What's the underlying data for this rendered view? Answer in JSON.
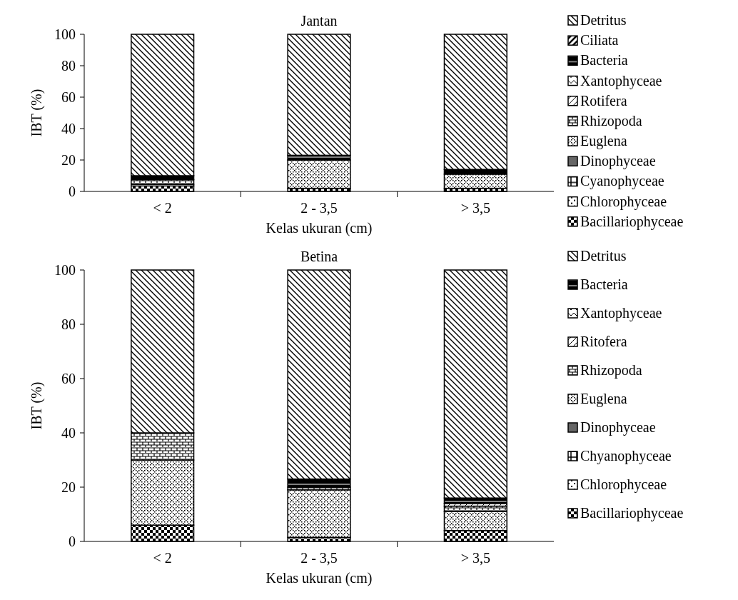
{
  "chart_data": [
    {
      "type": "bar",
      "stacked": true,
      "title": "Jantan",
      "xlabel": "Kelas ukuran (cm)",
      "ylabel": "IBT (%)",
      "categories": [
        "< 2",
        "2 - 3,5",
        "> 3,5"
      ],
      "ylim": [
        0,
        100
      ],
      "yticks": [
        0,
        20,
        40,
        60,
        80,
        100
      ],
      "legend": "right",
      "series": [
        {
          "name": "Bacillariophyceae",
          "color": "#000000",
          "values": [
            3.5,
            2,
            2
          ]
        },
        {
          "name": "Chlorophyceae",
          "color": "#000000",
          "values": [
            1,
            0,
            0
          ]
        },
        {
          "name": "Cyanophyceae",
          "color": "#000000",
          "values": [
            0,
            0,
            0
          ]
        },
        {
          "name": "Dinophyceae",
          "color": "#000000",
          "values": [
            0,
            0,
            0
          ]
        },
        {
          "name": "Euglena",
          "color": "#000000",
          "values": [
            0,
            18,
            9
          ]
        },
        {
          "name": "Rhizopoda",
          "color": "#000000",
          "values": [
            3,
            0,
            0
          ]
        },
        {
          "name": "Rotifera",
          "color": "#000000",
          "values": [
            0,
            0,
            0
          ]
        },
        {
          "name": "Xantophyceae",
          "color": "#000000",
          "values": [
            0,
            0,
            0
          ]
        },
        {
          "name": "Bacteria",
          "color": "#000000",
          "values": [
            2.5,
            3,
            3
          ]
        },
        {
          "name": "Ciliata",
          "color": "#000000",
          "values": [
            0,
            0,
            0
          ]
        },
        {
          "name": "Detritus",
          "color": "#000000",
          "values": [
            90,
            77,
            86
          ]
        }
      ]
    },
    {
      "type": "bar",
      "stacked": true,
      "title": "Betina",
      "xlabel": "Kelas ukuran (cm)",
      "ylabel": "IBT (%)",
      "categories": [
        "< 2",
        "2 - 3,5",
        "> 3,5"
      ],
      "ylim": [
        0,
        100
      ],
      "yticks": [
        0,
        20,
        40,
        60,
        80,
        100
      ],
      "legend": "right",
      "series": [
        {
          "name": "Bacillariophyceae",
          "color": "#000000",
          "values": [
            6,
            1.5,
            4
          ]
        },
        {
          "name": "Chlorophyceae",
          "color": "#000000",
          "values": [
            0,
            0,
            0
          ]
        },
        {
          "name": "Chyanophyceae",
          "color": "#000000",
          "values": [
            0,
            0,
            0
          ]
        },
        {
          "name": "Dinophyceae",
          "color": "#000000",
          "values": [
            0,
            0,
            0
          ]
        },
        {
          "name": "Euglena",
          "color": "#000000",
          "values": [
            24,
            17.5,
            7
          ]
        },
        {
          "name": "Rhizopoda",
          "color": "#000000",
          "values": [
            10,
            1,
            2
          ]
        },
        {
          "name": "Ritofera",
          "color": "#000000",
          "values": [
            0,
            0,
            1
          ]
        },
        {
          "name": "Xantophyceae",
          "color": "#000000",
          "values": [
            0,
            0,
            0
          ]
        },
        {
          "name": "Bacteria",
          "color": "#000000",
          "values": [
            0,
            3,
            2
          ]
        },
        {
          "name": "Detritus",
          "color": "#000000",
          "values": [
            60,
            77,
            84
          ]
        }
      ]
    }
  ]
}
